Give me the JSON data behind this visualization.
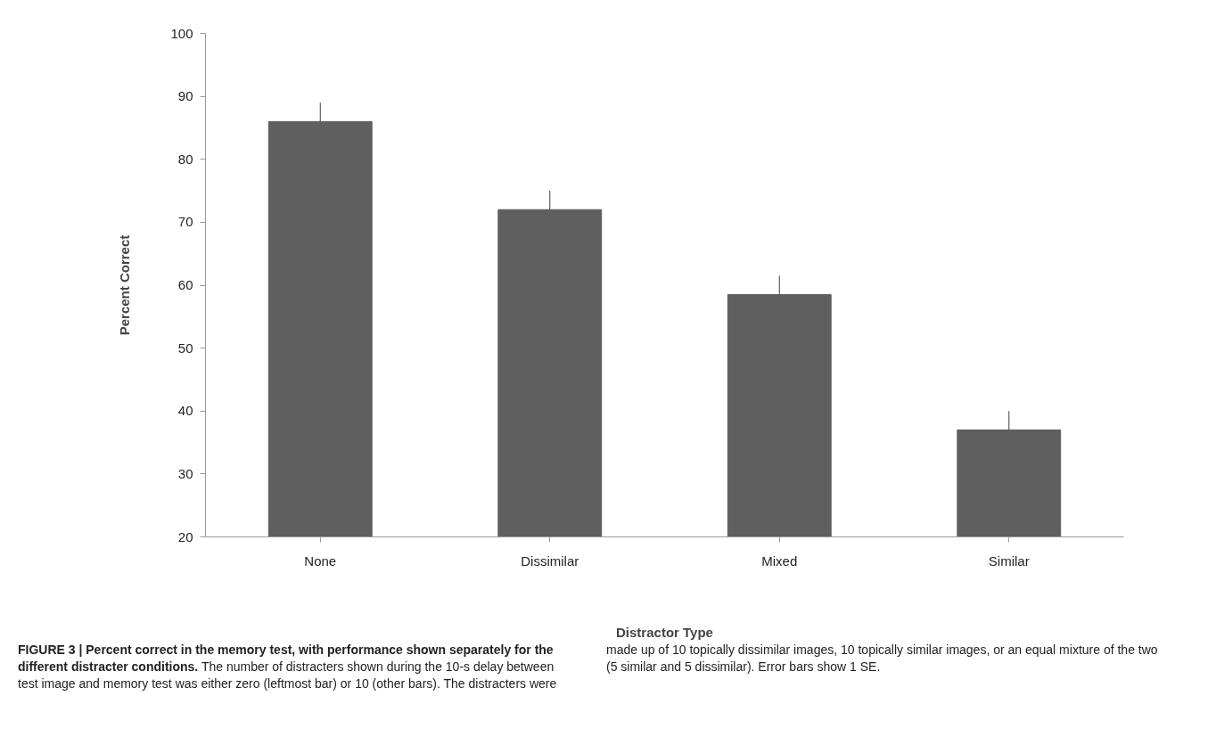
{
  "chart_data": {
    "type": "bar",
    "xlabel": "Distractor Type",
    "ylabel": "Percent Correct",
    "categories": [
      "None",
      "Dissimilar",
      "Mixed",
      "Similar"
    ],
    "values": [
      86,
      72,
      58.5,
      37
    ],
    "color": "#5f5f5f",
    "errors": [
      [
        86,
        89
      ],
      [
        72,
        75
      ],
      [
        58.5,
        61.5
      ],
      [
        37,
        40
      ]
    ],
    "ylim": [
      20,
      100
    ],
    "yticks": [
      20,
      30,
      40,
      50,
      60,
      70,
      80,
      90,
      100
    ],
    "grid": false,
    "annotations": [
      "FIGURE 3 | Percent correct in the memory test, with performance shown separately for the different distracter conditions.",
      "The number of distracters shown during the 10-s delay between test image and memory test was either zero (leftmost bar) or 10 (other bars). The distracters were made up of 10 topically dissimilar images, 10 topically similar images, or an equal mixture of the two (5 similar and 5 dissimilar). Error bars show 1 SE."
    ]
  }
}
